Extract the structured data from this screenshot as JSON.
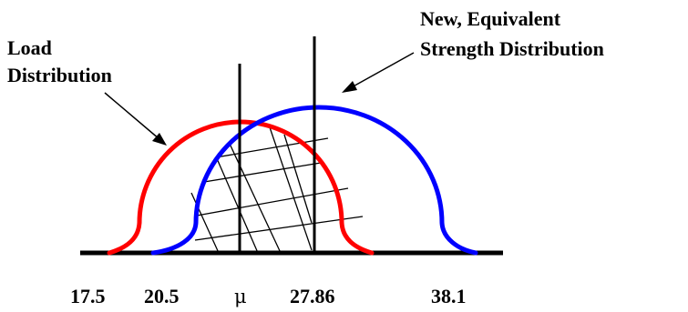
{
  "labels": {
    "load": [
      "Load",
      "Distribution"
    ],
    "strength": [
      "New, Equivalent",
      "Strength Distribution"
    ]
  },
  "axis_ticks": [
    "17.5",
    "20.5",
    "μ",
    "27.86",
    "38.1"
  ],
  "colors": {
    "load_curve": "#ff0000",
    "strength_curve": "#0000ff",
    "axis": "#000000",
    "hatch": "#000000"
  }
}
